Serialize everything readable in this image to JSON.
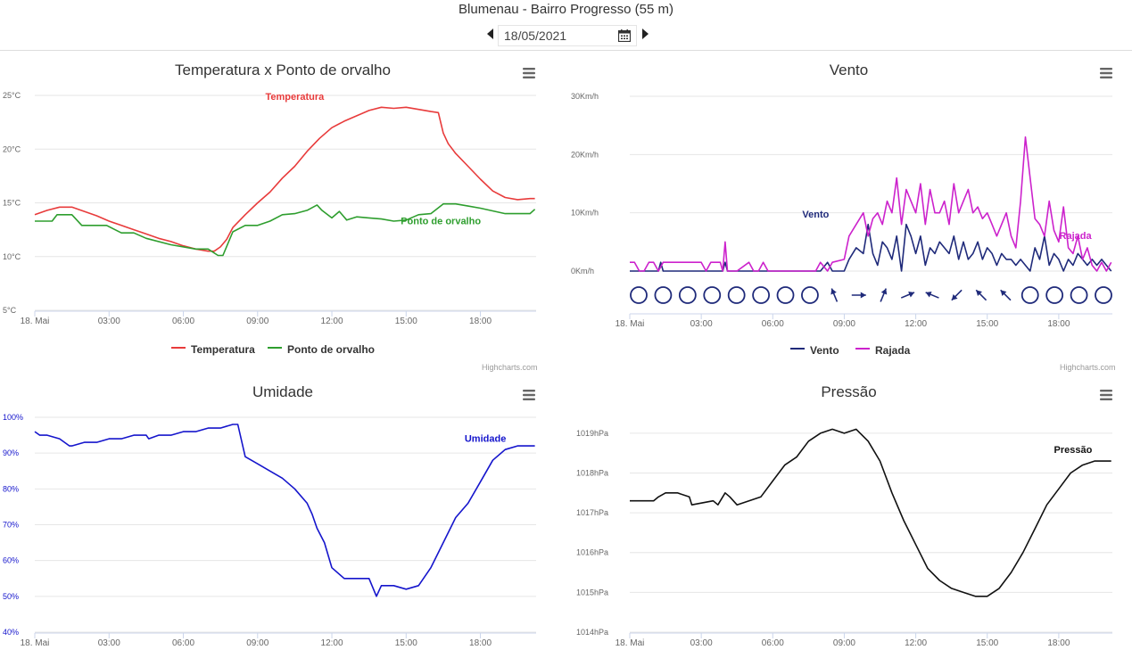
{
  "page": {
    "title": "Blumenau - Bairro Progresso (55 m)",
    "date": "18/05/2021",
    "credits": "Highcharts.com"
  },
  "icons": {
    "prev": "chevron-left-icon",
    "next": "chevron-right-icon",
    "calendar": "calendar-icon",
    "menu": "hamburger-menu-icon",
    "wind_direction": "arrow-icon",
    "calm": "circle-icon"
  },
  "chart_data": [
    {
      "id": "temp",
      "type": "line",
      "title": "Temperatura x Ponto de orvalho",
      "xticks": [
        "18. Mai",
        "03:00",
        "06:00",
        "09:00",
        "12:00",
        "15:00",
        "18:00"
      ],
      "x_unit": "hours since 00:00 on 18/05",
      "xlim": [
        0,
        20.25
      ],
      "yticks": [
        "5°C",
        "10°C",
        "15°C",
        "20°C",
        "25°C"
      ],
      "ylim": [
        5,
        25
      ],
      "grid": true,
      "legend_position": "bottom-center",
      "series": [
        {
          "name": "Temperatura",
          "color": "#e83b3b",
          "label": "Temperatura",
          "x": [
            0,
            0.5,
            1,
            1.5,
            2,
            2.5,
            3,
            3.5,
            4,
            4.5,
            5,
            5.5,
            6,
            6.5,
            7,
            7.25,
            7.5,
            7.75,
            8,
            8.5,
            9,
            9.5,
            10,
            10.5,
            11,
            11.5,
            12,
            12.5,
            13,
            13.5,
            14,
            14.5,
            15,
            15.5,
            16,
            16.3,
            16.5,
            16.7,
            17,
            17.5,
            18,
            18.5,
            19,
            19.5,
            20,
            20.2
          ],
          "values": [
            13.9,
            14.3,
            14.6,
            14.6,
            14.2,
            13.8,
            13.3,
            12.9,
            12.5,
            12.1,
            11.7,
            11.4,
            11.0,
            10.7,
            10.5,
            10.5,
            10.9,
            11.6,
            12.7,
            13.9,
            15.0,
            16.0,
            17.3,
            18.4,
            19.8,
            21.0,
            22.0,
            22.6,
            23.1,
            23.6,
            23.9,
            23.8,
            23.9,
            23.7,
            23.5,
            23.4,
            21.5,
            20.5,
            19.6,
            18.4,
            17.2,
            16.1,
            15.5,
            15.3,
            15.4,
            15.4
          ]
        },
        {
          "name": "Ponto de orvalho",
          "color": "#2e9e2e",
          "label": "Ponto de orvalho",
          "x": [
            0,
            0.7,
            0.9,
            1.5,
            1.9,
            2.9,
            3.5,
            4.0,
            4.5,
            5.5,
            6.5,
            7.0,
            7.4,
            7.6,
            8.0,
            8.5,
            9.0,
            9.5,
            10.0,
            10.5,
            11.0,
            11.4,
            11.6,
            12.0,
            12.3,
            12.6,
            13.0,
            13.5,
            14.0,
            14.5,
            15.0,
            15.5,
            16.0,
            16.5,
            17.0,
            17.5,
            18.0,
            19.0,
            20.0,
            20.2
          ],
          "values": [
            13.3,
            13.3,
            13.9,
            13.9,
            12.9,
            12.9,
            12.2,
            12.2,
            11.7,
            11.1,
            10.7,
            10.7,
            10.1,
            10.1,
            12.3,
            12.9,
            12.9,
            13.3,
            13.9,
            14.0,
            14.3,
            14.8,
            14.3,
            13.6,
            14.2,
            13.4,
            13.7,
            13.6,
            13.5,
            13.3,
            13.4,
            13.9,
            14.0,
            14.9,
            14.9,
            14.7,
            14.5,
            14.0,
            14.0,
            14.4
          ]
        }
      ]
    },
    {
      "id": "wind",
      "type": "line",
      "title": "Vento",
      "xticks": [
        "18. Mai",
        "03:00",
        "06:00",
        "09:00",
        "12:00",
        "15:00",
        "18:00"
      ],
      "x_unit": "hours since 00:00 on 18/05",
      "xlim": [
        0,
        20.25
      ],
      "yticks": [
        "0Km/h",
        "10Km/h",
        "20Km/h",
        "30Km/h"
      ],
      "ylim": [
        0,
        30
      ],
      "grid": true,
      "legend_position": "bottom-center",
      "series": [
        {
          "name": "Vento",
          "color": "#1f2a7a",
          "label": "Vento",
          "x": [
            0,
            1.2,
            1.3,
            1.4,
            3.9,
            4.0,
            4.1,
            8.0,
            8.3,
            8.5,
            9.0,
            9.2,
            9.5,
            9.8,
            10.0,
            10.2,
            10.4,
            10.6,
            10.8,
            11.0,
            11.2,
            11.4,
            11.6,
            11.8,
            12.0,
            12.2,
            12.4,
            12.6,
            12.8,
            13.0,
            13.2,
            13.4,
            13.6,
            13.8,
            14.0,
            14.2,
            14.4,
            14.6,
            14.8,
            15.0,
            15.2,
            15.4,
            15.6,
            15.8,
            16.0,
            16.2,
            16.4,
            16.6,
            16.8,
            17.0,
            17.2,
            17.4,
            17.6,
            17.8,
            18.0,
            18.2,
            18.4,
            18.6,
            18.8,
            19.0,
            19.2,
            19.4,
            19.6,
            19.8,
            20.0,
            20.2
          ],
          "values": [
            0,
            0,
            1.5,
            0,
            0,
            1.5,
            0,
            0,
            1.5,
            0,
            0,
            2,
            4,
            3,
            8,
            3,
            1,
            5,
            4,
            2,
            6,
            0,
            8,
            6,
            3,
            6,
            1,
            4,
            3,
            5,
            4,
            3,
            6,
            2,
            5,
            2,
            3,
            5,
            2,
            4,
            3,
            1,
            3,
            2,
            2,
            1,
            2,
            1,
            0,
            4,
            2,
            6,
            1,
            3,
            2,
            0,
            2,
            1,
            3,
            2,
            1,
            2,
            1,
            2,
            1,
            0
          ]
        },
        {
          "name": "Rajada",
          "color": "#cc22cc",
          "label": "Rajada",
          "x": [
            0,
            0.2,
            0.4,
            0.6,
            0.8,
            1.0,
            1.2,
            1.4,
            1.6,
            1.8,
            2.0,
            2.2,
            2.4,
            2.6,
            2.8,
            3.0,
            3.2,
            3.4,
            3.6,
            3.8,
            3.9,
            4.0,
            4.1,
            4.5,
            5.0,
            5.2,
            5.4,
            5.6,
            5.8,
            6.0,
            7.0,
            7.8,
            8.0,
            8.3,
            8.5,
            9.0,
            9.2,
            9.5,
            9.8,
            10.0,
            10.2,
            10.4,
            10.6,
            10.8,
            11.0,
            11.2,
            11.4,
            11.6,
            11.8,
            12.0,
            12.2,
            12.4,
            12.6,
            12.8,
            13.0,
            13.2,
            13.4,
            13.6,
            13.8,
            14.0,
            14.2,
            14.4,
            14.6,
            14.8,
            15.0,
            15.2,
            15.4,
            15.6,
            15.8,
            16.0,
            16.2,
            16.4,
            16.6,
            16.8,
            17.0,
            17.2,
            17.4,
            17.6,
            17.8,
            18.0,
            18.2,
            18.4,
            18.6,
            18.8,
            19.0,
            19.2,
            19.4,
            19.6,
            19.8,
            20.0,
            20.2
          ],
          "values": [
            1.5,
            1.5,
            0,
            0,
            1.5,
            1.5,
            0,
            1.5,
            1.5,
            1.5,
            1.5,
            1.5,
            1.5,
            1.5,
            1.5,
            1.5,
            0,
            1.5,
            1.5,
            1.5,
            0,
            5,
            0,
            0,
            1.5,
            0,
            0,
            1.5,
            0,
            0,
            0,
            0,
            1.5,
            0,
            1.5,
            2,
            6,
            8,
            10,
            6,
            9,
            10,
            8,
            12,
            10,
            16,
            8,
            14,
            12,
            10,
            15,
            8,
            14,
            10,
            10,
            12,
            8,
            15,
            10,
            12,
            14,
            10,
            11,
            9,
            10,
            8,
            6,
            8,
            10,
            6,
            4,
            12,
            23,
            16,
            9,
            8,
            6,
            12,
            7,
            5,
            11,
            4,
            3,
            6,
            2,
            4,
            1,
            0,
            1.5,
            0,
            1.5
          ]
        }
      ],
      "directions": [
        "calm",
        "calm",
        "calm",
        "calm",
        "calm",
        "calm",
        "calm",
        "calm",
        "SSE",
        "W",
        "SSW",
        "WSW",
        "ESE",
        "NE",
        "SE",
        "SE",
        "calm",
        "calm",
        "calm",
        "calm"
      ]
    },
    {
      "id": "humidity",
      "type": "line",
      "title": "Umidade",
      "xticks": [
        "18. Mai",
        "03:00",
        "06:00",
        "09:00",
        "12:00",
        "15:00",
        "18:00"
      ],
      "x_unit": "hours since 00:00 on 18/05",
      "xlim": [
        0,
        20.25
      ],
      "yticks": [
        "40%",
        "50%",
        "60%",
        "70%",
        "80%",
        "90%",
        "100%"
      ],
      "ylim": [
        40,
        100
      ],
      "grid": true,
      "series": [
        {
          "name": "Umidade",
          "color": "#1515cc",
          "label": "Umidade",
          "x": [
            0,
            0.2,
            0.5,
            1.0,
            1.4,
            1.5,
            2.0,
            2.5,
            3.0,
            3.5,
            4.0,
            4.5,
            4.6,
            5.0,
            5.5,
            6.0,
            6.5,
            7.0,
            7.5,
            8.0,
            8.2,
            8.5,
            9.0,
            9.5,
            10.0,
            10.5,
            11.0,
            11.2,
            11.4,
            11.7,
            12.0,
            12.5,
            13.0,
            13.5,
            13.8,
            14.0,
            14.5,
            15.0,
            15.5,
            16.0,
            16.5,
            17.0,
            17.5,
            18.0,
            18.5,
            19.0,
            19.5,
            20.0,
            20.2
          ],
          "values": [
            96,
            95,
            95,
            94,
            92,
            92,
            93,
            93,
            94,
            94,
            95,
            95,
            94,
            95,
            95,
            96,
            96,
            97,
            97,
            98,
            98,
            89,
            87,
            85,
            83,
            80,
            76,
            73,
            69,
            65,
            58,
            55,
            55,
            55,
            50,
            53,
            53,
            52,
            53,
            58,
            65,
            72,
            76,
            82,
            88,
            91,
            92,
            92,
            92
          ]
        }
      ]
    },
    {
      "id": "pressure",
      "type": "line",
      "title": "Pressão",
      "xticks": [
        "18. Mai",
        "03:00",
        "06:00",
        "09:00",
        "12:00",
        "15:00",
        "18:00"
      ],
      "x_unit": "hours since 00:00 on 18/05",
      "xlim": [
        0,
        20.25
      ],
      "yticks": [
        "1014hPa",
        "1015hPa",
        "1016hPa",
        "1017hPa",
        "1018hPa",
        "1019hPa"
      ],
      "ylim": [
        1014,
        1019.4
      ],
      "grid": true,
      "series": [
        {
          "name": "Pressão",
          "color": "#111111",
          "label": "Pressão",
          "x": [
            0,
            1.0,
            1.2,
            1.5,
            2.0,
            2.5,
            2.6,
            3.5,
            3.7,
            4.0,
            4.2,
            4.5,
            5.0,
            5.5,
            6.0,
            6.5,
            7.0,
            7.5,
            8.0,
            8.5,
            9.0,
            9.5,
            10.0,
            10.5,
            11.0,
            11.5,
            12.0,
            12.5,
            13.0,
            13.5,
            14.0,
            14.5,
            15.0,
            15.5,
            16.0,
            16.5,
            17.0,
            17.5,
            18.0,
            18.5,
            19.0,
            19.5,
            20.0,
            20.2
          ],
          "values": [
            1017.3,
            1017.3,
            1017.4,
            1017.5,
            1017.5,
            1017.4,
            1017.2,
            1017.3,
            1017.2,
            1017.5,
            1017.4,
            1017.2,
            1017.3,
            1017.4,
            1017.8,
            1018.2,
            1018.4,
            1018.8,
            1019.0,
            1019.1,
            1019.0,
            1019.1,
            1018.8,
            1018.3,
            1017.5,
            1016.8,
            1016.2,
            1015.6,
            1015.3,
            1015.1,
            1015.0,
            1014.9,
            1014.9,
            1015.1,
            1015.5,
            1016.0,
            1016.6,
            1017.2,
            1017.6,
            1018.0,
            1018.2,
            1018.3,
            1018.3,
            1018.3
          ]
        }
      ]
    }
  ]
}
